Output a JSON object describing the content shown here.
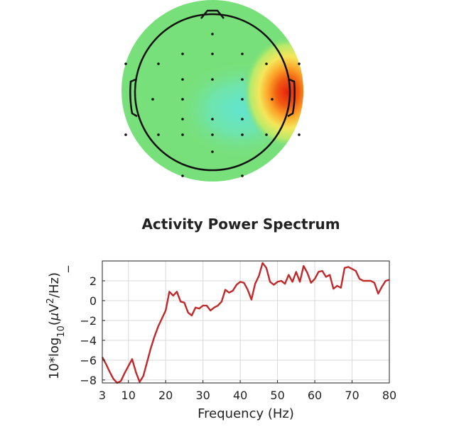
{
  "scalp_map": {
    "hotspot_color": "#e8200e",
    "background_color": "#78e07a",
    "low_region_color": "#5ee6df"
  },
  "chart_data": {
    "type": "line",
    "title": "Activity Power Spectrum",
    "xlabel": "Frequency (Hz)",
    "ylabel_parts": {
      "base": "10*log",
      "sub": "10",
      "open": "(",
      "mu": "μ",
      "v": "V",
      "sup": "2",
      "close": "/Hz)",
      "trail": "_"
    },
    "xlim": [
      3,
      80
    ],
    "ylim": [
      -8.3,
      4
    ],
    "xticks": [
      3,
      10,
      20,
      30,
      40,
      50,
      60,
      70,
      80
    ],
    "yticks": [
      2,
      0,
      -2,
      -4,
      -6,
      -8
    ],
    "ytick_labels": [
      "2",
      "0",
      "−2",
      "−4",
      "−6",
      "−8"
    ],
    "grid": true,
    "series": [
      {
        "color": "#c0282a",
        "x": [
          3,
          4,
          5,
          6,
          7,
          8,
          9,
          10,
          11,
          12,
          13,
          14,
          15,
          16,
          17,
          18,
          19,
          20,
          21,
          22,
          23,
          24,
          25,
          26,
          27,
          28,
          29,
          30,
          31,
          32,
          33,
          34,
          35,
          36,
          37,
          38,
          39,
          40,
          41,
          42,
          43,
          44,
          45,
          46,
          47,
          48,
          49,
          50,
          51,
          52,
          53,
          54,
          55,
          56,
          57,
          58,
          59,
          60,
          61,
          62,
          63,
          64,
          65,
          66,
          67,
          68,
          69,
          70,
          71,
          72,
          73,
          74,
          75,
          76,
          77,
          78,
          79,
          80
        ],
        "y": [
          -5.7,
          -6.4,
          -7.2,
          -7.9,
          -8.3,
          -8.1,
          -7.3,
          -6.6,
          -5.9,
          -7.2,
          -8.2,
          -7.6,
          -6.2,
          -4.8,
          -3.6,
          -2.6,
          -1.8,
          -1.0,
          0.9,
          0.5,
          0.9,
          -0.1,
          -0.2,
          -1.2,
          -1.5,
          -0.7,
          -0.8,
          -0.5,
          -0.5,
          -1.0,
          -0.7,
          -0.5,
          -0.1,
          1.1,
          0.8,
          1.0,
          1.6,
          1.9,
          1.8,
          1.1,
          0.1,
          1.7,
          2.5,
          3.8,
          3.3,
          1.9,
          1.6,
          1.9,
          2.0,
          1.7,
          2.6,
          1.9,
          2.9,
          1.9,
          3.5,
          2.8,
          1.8,
          2.2,
          2.9,
          3.0,
          2.4,
          2.6,
          1.2,
          1.5,
          1.3,
          3.3,
          3.4,
          3.2,
          3.0,
          2.2,
          2.0,
          2.0,
          2.0,
          1.8,
          0.7,
          1.4,
          2.0,
          2.1
        ]
      }
    ]
  }
}
